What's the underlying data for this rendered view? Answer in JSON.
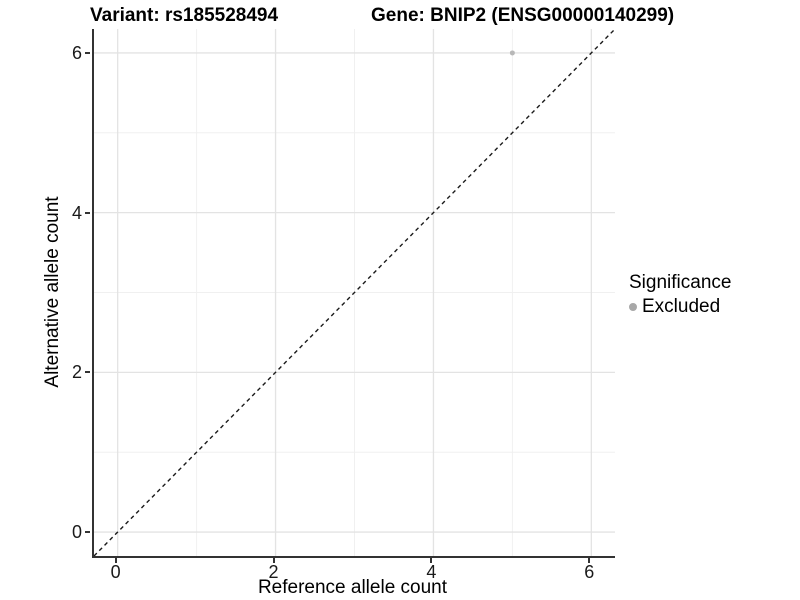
{
  "chart_data": {
    "type": "scatter",
    "title_left": "Variant: rs185528494",
    "title_right": "Gene: BNIP2 (ENSG00000140299)",
    "xlabel": "Reference allele count",
    "ylabel": "Alternative allele count",
    "xlim": [
      -0.3,
      6.3
    ],
    "ylim": [
      -0.3,
      6.3
    ],
    "x_ticks": [
      0,
      2,
      4,
      6
    ],
    "y_ticks": [
      0,
      2,
      4,
      6
    ],
    "x_minor_ticks": [
      1,
      3,
      5
    ],
    "y_minor_ticks": [
      1,
      3,
      5
    ],
    "grid": true,
    "points": [
      {
        "x": 5,
        "y": 6,
        "series": "Excluded"
      }
    ],
    "identity_line": {
      "slope": 1,
      "intercept": 0,
      "style": "dashed"
    },
    "legend": {
      "title": "Significance",
      "position": "right",
      "items": [
        {
          "label": "Excluded",
          "color": "#a8a8a8"
        }
      ]
    },
    "colors": {
      "point": "#b8b8b8",
      "grid_major": "#e3e3e3",
      "grid_minor": "#f0f0f0",
      "axis_line": "#333333",
      "dashed_line": "#1a1a1a",
      "text": "#000000"
    }
  }
}
